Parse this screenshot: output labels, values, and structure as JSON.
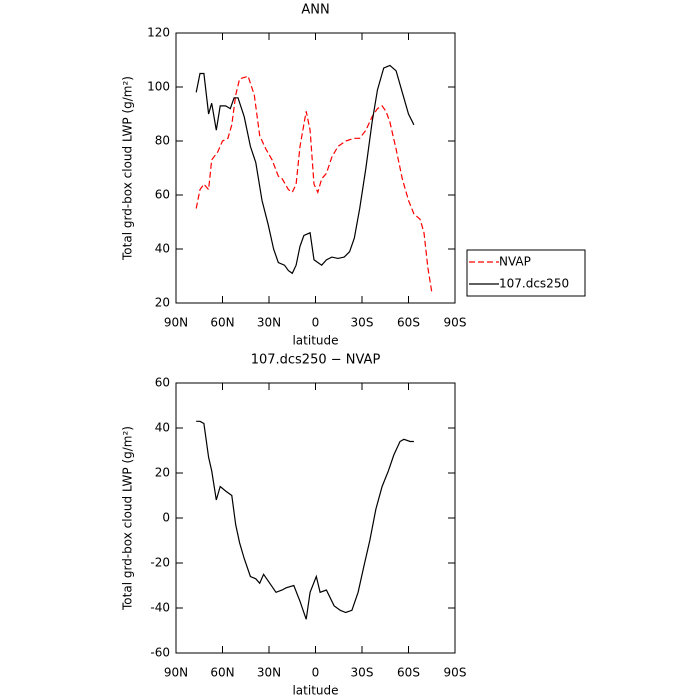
{
  "chart_data": [
    {
      "type": "line",
      "title": "ANN",
      "x_label": "latitude",
      "y_label": "Total grd-box cloud LWP (g/m²)",
      "xlim": [
        90,
        -90
      ],
      "xticks": [
        {
          "value": 90,
          "label": "90N"
        },
        {
          "value": 60,
          "label": "60N"
        },
        {
          "value": 30,
          "label": "30N"
        },
        0,
        {
          "value": -30,
          "label": "30S"
        },
        {
          "value": -60,
          "label": "60S"
        },
        {
          "value": -90,
          "label": "90S"
        }
      ],
      "ylim": [
        20,
        120
      ],
      "yticks": [
        20,
        40,
        60,
        80,
        100,
        120
      ],
      "legend": "right",
      "series": [
        {
          "name": "NVAP",
          "color": "#ff0000",
          "linestyle": "dashed",
          "x": [
            77,
            74.5,
            72,
            69,
            67,
            63,
            60,
            56.5,
            54,
            51.5,
            49,
            43.5,
            39.5,
            36,
            32,
            28,
            24,
            21.5,
            17.5,
            15,
            12.5,
            10,
            6,
            3.5,
            1,
            -1.5,
            -4,
            -7,
            -10.5,
            -14.5,
            -19.5,
            -25,
            -28.5,
            -32.5,
            -36.5,
            -40,
            -43,
            -45.5,
            -48,
            -52,
            -56,
            -60,
            -63.5,
            -67.5,
            -70,
            -72.5,
            -75
          ],
          "values": [
            55,
            62,
            64,
            62,
            73,
            76,
            80,
            81,
            86,
            97,
            103,
            104,
            97,
            82,
            77,
            73,
            67,
            66,
            62,
            61,
            64,
            78,
            91,
            84,
            64,
            61,
            66,
            68,
            74,
            78,
            80,
            81,
            81,
            84,
            89,
            92,
            93,
            91,
            87,
            77,
            66,
            58,
            53,
            51,
            46,
            33,
            24
          ]
        },
        {
          "name": "107.dcs250",
          "color": "#000000",
          "linestyle": "solid",
          "x": [
            77,
            74.5,
            72,
            69,
            67,
            64,
            61.5,
            58,
            55,
            52.5,
            50,
            46,
            42,
            38.5,
            34.5,
            30.5,
            27,
            24,
            20,
            17.5,
            15,
            12.5,
            10,
            7.5,
            3.5,
            1,
            -1.5,
            -4,
            -7,
            -10.5,
            -14.5,
            -18.5,
            -22,
            -25,
            -28.5,
            -32.5,
            -36.5,
            -40,
            -44,
            -48,
            -52,
            -56,
            -60,
            -63.5
          ],
          "values": [
            98,
            105,
            105,
            90,
            94,
            84,
            93,
            93,
            92,
            96,
            96,
            89,
            78,
            72,
            58,
            49,
            40,
            35,
            34,
            32,
            31,
            34,
            41,
            45,
            46,
            36,
            35,
            34,
            36,
            37,
            36.5,
            37,
            39,
            44,
            55,
            70,
            87,
            99,
            107,
            108,
            106,
            98,
            90,
            86
          ]
        }
      ]
    },
    {
      "type": "line",
      "title": "107.dcs250 − NVAP",
      "x_label": "latitude",
      "y_label": "Total grd-box cloud LWP (g/m²)",
      "xlim": [
        90,
        -90
      ],
      "xticks": [
        {
          "value": 90,
          "label": "90N"
        },
        {
          "value": 60,
          "label": "60N"
        },
        {
          "value": 30,
          "label": "30N"
        },
        0,
        {
          "value": -30,
          "label": "30S"
        },
        {
          "value": -60,
          "label": "60S"
        },
        {
          "value": -90,
          "label": "90S"
        }
      ],
      "ylim": [
        -60,
        60
      ],
      "yticks": [
        -60,
        -40,
        -20,
        0,
        20,
        40,
        60
      ],
      "color": "#000000",
      "linestyle": "solid",
      "x": [
        77,
        74.5,
        72,
        69,
        67,
        64,
        61.5,
        58,
        54,
        51.5,
        49,
        46,
        42,
        38.5,
        36,
        33.5,
        29.5,
        25.5,
        21.5,
        19,
        14,
        10,
        6,
        3.5,
        -0.5,
        -3,
        -7,
        -12,
        -16,
        -19.5,
        -23.5,
        -27.5,
        -31,
        -35,
        -39,
        -43,
        -47,
        -50.5,
        -54.5,
        -57,
        -61,
        -63.5
      ],
      "values": [
        43,
        43,
        42,
        27,
        21,
        8,
        14,
        12,
        10,
        -3,
        -11,
        -18,
        -26,
        -27,
        -29,
        -25,
        -29,
        -33,
        -32,
        -31,
        -30,
        -37,
        -45,
        -33,
        -26,
        -33,
        -32,
        -39,
        -41,
        -42,
        -41,
        -33,
        -22,
        -10,
        4,
        14,
        21,
        28,
        34,
        35,
        34,
        34
      ]
    }
  ]
}
